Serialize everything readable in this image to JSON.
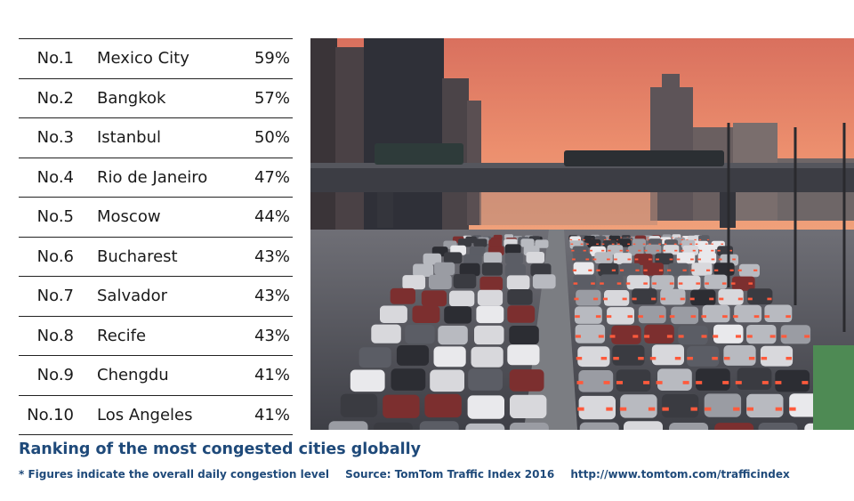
{
  "ranking": {
    "rows": [
      {
        "rank": "No.1",
        "city": "Mexico City",
        "level": "59%"
      },
      {
        "rank": "No.2",
        "city": "Bangkok",
        "level": "57%"
      },
      {
        "rank": "No.3",
        "city": "Istanbul",
        "level": "50%"
      },
      {
        "rank": "No.4",
        "city": "Rio de Janeiro",
        "level": "47%"
      },
      {
        "rank": "No.5",
        "city": "Moscow",
        "level": "44%"
      },
      {
        "rank": "No.6",
        "city": "Bucharest",
        "level": "43%"
      },
      {
        "rank": "No.7",
        "city": "Salvador",
        "level": "43%"
      },
      {
        "rank": "No.8",
        "city": "Recife",
        "level": "43%"
      },
      {
        "rank": "No.9",
        "city": "Chengdu",
        "level": "41%"
      },
      {
        "rank": "No.10",
        "city": "Los Angeles",
        "level": "41%"
      }
    ]
  },
  "caption": {
    "title": "Ranking of the most congested cities globally",
    "note": "* Figures indicate the overall daily congestion level",
    "source": "Source: TomTom Traffic Index 2016",
    "url": "http://www.tomtom.com/trafficindex"
  },
  "colors": {
    "caption_text": "#1f4a7a",
    "table_rule": "#222222",
    "sky_top": "#d9705e",
    "sky_bottom": "#f0a37c"
  }
}
